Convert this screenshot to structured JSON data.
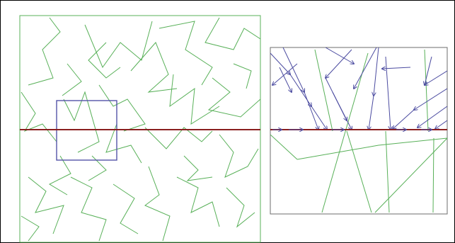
{
  "figure": {
    "frame_color": "#000000",
    "background": "#ffffff",
    "edge_color": "#58b058",
    "horizontal_line_color": "#8a1f1f",
    "selection_box_color": "#5454a8",
    "arrow_color": "#4b4ba0",
    "panel_border_color": "#6e6e6e"
  },
  "panels": {
    "overview": {
      "name": "overview-panel"
    },
    "zoom": {
      "name": "zoom-panel"
    }
  }
}
